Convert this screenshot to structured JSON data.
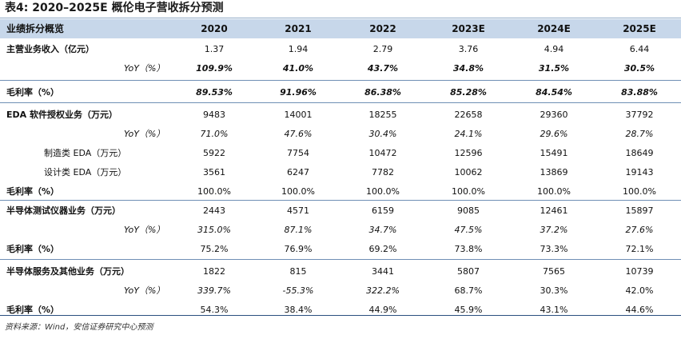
{
  "title": "表4: 2020–2025E 概伦电子营收拆分预测",
  "header": {
    "label": "业绩拆分概览",
    "years": [
      "2020",
      "2021",
      "2022",
      "2023E",
      "2024E",
      "2025E"
    ]
  },
  "rows": [
    {
      "label": "主营业务收入（亿元）",
      "values": [
        "1.37",
        "1.94",
        "2.79",
        "3.76",
        "4.94",
        "6.44"
      ],
      "style": "normal"
    },
    {
      "label": "YoY（%）",
      "values": [
        "109.9%",
        "41.0%",
        "43.7%",
        "34.8%",
        "31.5%",
        "30.5%"
      ],
      "style": "yoy-bold"
    },
    {
      "label": "毛利率（%）",
      "values": [
        "89.53%",
        "91.96%",
        "86.38%",
        "85.28%",
        "84.54%",
        "83.88%"
      ],
      "style": "margin-bold"
    },
    {
      "label": "EDA 软件授权业务（万元）",
      "values": [
        "9483",
        "14001",
        "18255",
        "22658",
        "29360",
        "37792"
      ],
      "style": "normal"
    },
    {
      "label": "YoY（%）",
      "values": [
        "71.0%",
        "47.6%",
        "30.4%",
        "24.1%",
        "29.6%",
        "28.7%"
      ],
      "style": "yoy"
    },
    {
      "label": "制造类 EDA（万元）",
      "values": [
        "5922",
        "7754",
        "10472",
        "12596",
        "15491",
        "18649"
      ],
      "style": "sub"
    },
    {
      "label": "设计类 EDA（万元）",
      "values": [
        "3561",
        "6247",
        "7782",
        "10062",
        "13869",
        "19143"
      ],
      "style": "sub"
    },
    {
      "label": "毛利率（%）",
      "values": [
        "100.0%",
        "100.0%",
        "100.0%",
        "100.0%",
        "100.0%",
        "100.0%"
      ],
      "style": "margin"
    },
    {
      "label": "半导体测试仪器业务（万元）",
      "values": [
        "2443",
        "4571",
        "6159",
        "9085",
        "12461",
        "15897"
      ],
      "style": "normal"
    },
    {
      "label": "YoY（%）",
      "values": [
        "315.0%",
        "87.1%",
        "34.7%",
        "47.5%",
        "37.2%",
        "27.6%"
      ],
      "style": "yoy"
    },
    {
      "label": "毛利率（%）",
      "values": [
        "75.2%",
        "76.9%",
        "69.2%",
        "73.8%",
        "73.3%",
        "72.1%"
      ],
      "style": "margin"
    },
    {
      "label": "半导体服务及其他业务（万元）",
      "values": [
        "1822",
        "815",
        "3441",
        "5807",
        "7565",
        "10739"
      ],
      "style": "normal"
    },
    {
      "label": "YoY（%）",
      "values": [
        "339.7%",
        "-55.3%",
        "322.2%",
        "68.7%",
        "30.3%",
        "42.0%"
      ],
      "style": "yoy-mixed"
    },
    {
      "label": "毛利率（%）",
      "values": [
        "54.3%",
        "38.4%",
        "44.9%",
        "45.9%",
        "43.1%",
        "44.6%"
      ],
      "style": "margin"
    }
  ],
  "source": "资料来源：Wind，安信证券研究中心预测"
}
